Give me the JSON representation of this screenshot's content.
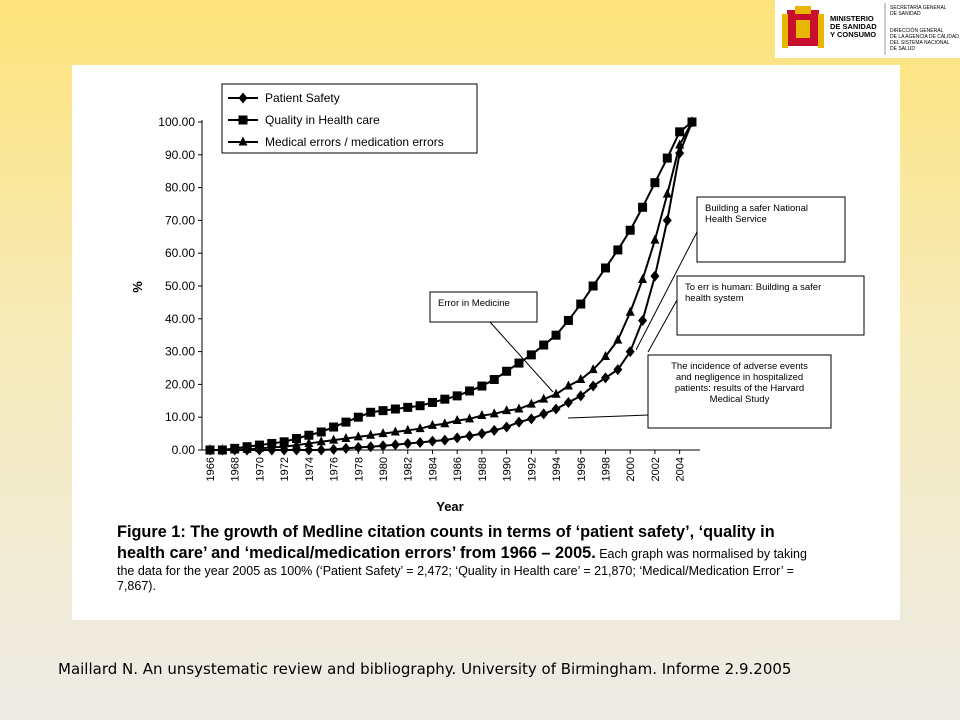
{
  "logo": {
    "ministry": [
      "MINISTERIO",
      "DE SANIDAD",
      "Y CONSUMO"
    ],
    "secretariat": [
      "SECRETARÍA GENERAL",
      "DE SANIDAD"
    ],
    "direction": [
      "DIRECCIÓN GENERAL",
      "DE LA AGENCIA DE CALIDAD",
      "DEL SISTEMA NACIONAL",
      "DE SALUD"
    ]
  },
  "chart_data": {
    "type": "line",
    "xlabel": "Year",
    "ylabel": "%",
    "x": [
      1966,
      1967,
      1968,
      1969,
      1970,
      1971,
      1972,
      1973,
      1974,
      1975,
      1976,
      1977,
      1978,
      1979,
      1980,
      1981,
      1982,
      1983,
      1984,
      1985,
      1986,
      1987,
      1988,
      1989,
      1990,
      1991,
      1992,
      1993,
      1994,
      1995,
      1996,
      1997,
      1998,
      1999,
      2000,
      2001,
      2002,
      2003,
      2004,
      2005
    ],
    "series": [
      {
        "name": "Patient Safety",
        "color": "#000000",
        "marker": "diamond",
        "values": [
          0,
          0,
          0,
          0,
          0,
          0,
          0,
          0,
          0,
          0,
          0.2,
          0.5,
          0.8,
          1,
          1.3,
          1.6,
          2,
          2.3,
          2.7,
          3,
          3.7,
          4.3,
          5,
          6,
          7,
          8.5,
          9.5,
          11,
          12.5,
          14.5,
          16.5,
          19.5,
          22,
          24.5,
          30,
          39.5,
          53,
          70,
          90.5,
          100
        ]
      },
      {
        "name": "Quality in Health care",
        "color": "#000000",
        "marker": "square",
        "values": [
          0,
          0,
          0.5,
          1,
          1.5,
          2,
          2.5,
          3.5,
          4.5,
          5.5,
          7,
          8.5,
          10,
          11.5,
          12,
          12.5,
          13,
          13.5,
          14.5,
          15.5,
          16.5,
          18,
          19.5,
          21.5,
          24,
          26.5,
          29,
          32,
          35,
          39.5,
          44.5,
          50,
          55.5,
          61,
          67,
          74,
          81.5,
          89,
          97,
          100
        ]
      },
      {
        "name": "Medical errors / medication errors",
        "color": "#000000",
        "marker": "triangle",
        "values": [
          0,
          0,
          0,
          0.2,
          0.5,
          0.8,
          1,
          1.5,
          2,
          2.5,
          3,
          3.5,
          4,
          4.5,
          5,
          5.5,
          6,
          6.5,
          7.5,
          8,
          9,
          9.5,
          10.5,
          11,
          12,
          12.5,
          14,
          15.5,
          17,
          19.5,
          21.5,
          24.5,
          28.5,
          33.5,
          42,
          52,
          64,
          78,
          93,
          100
        ]
      }
    ],
    "xlim": [
      1966,
      2005
    ],
    "xticks": [
      1966,
      1968,
      1970,
      1972,
      1974,
      1976,
      1978,
      1980,
      1982,
      1984,
      1986,
      1988,
      1990,
      1992,
      1994,
      1996,
      1998,
      2000,
      2002,
      2004
    ],
    "ylim": [
      0,
      100
    ],
    "yticks": [
      {
        "value": 0,
        "label": "0.00"
      },
      {
        "value": 10,
        "label": "10.00"
      },
      {
        "value": 20,
        "label": "20.00"
      },
      {
        "value": 30,
        "label": "30.00"
      },
      {
        "value": 40,
        "label": "40.00"
      },
      {
        "value": 50,
        "label": "50.00"
      },
      {
        "value": 60,
        "label": "60.00"
      },
      {
        "value": 70,
        "label": "70.00"
      },
      {
        "value": 80,
        "label": "80.00"
      },
      {
        "value": 90,
        "label": "90.00"
      },
      {
        "value": 100,
        "label": "100.00"
      }
    ],
    "legend": "upper left",
    "annotations": [
      {
        "lines": [
          "Error in Medicine"
        ]
      },
      {
        "lines": [
          "Building a safer National",
          "Health Service"
        ]
      },
      {
        "lines": [
          "To err is human: Building a safer",
          "health system"
        ]
      },
      {
        "lines": [
          "The incidence of adverse events",
          "and negligence in hospitalized",
          "patients: results of the Harvard",
          "Medical Study"
        ]
      }
    ]
  },
  "caption": {
    "bold": "Figure 1: The growth of Medline citation counts in terms of ‘patient safety’, ‘quality in health care’ and ‘medical/medication errors’ from 1966 – 2005.",
    "text": " Each graph was normalised by taking the data for the year 2005 as 100% (‘Patient Safety’ = 2,472; ‘Quality in Health care’ = 21,870; ‘Medical/Medication Error’ = 7,867)."
  },
  "footer": "Maillard N. An unsystematic review and bibliography. University of Birmingham. Informe 2.9.2005"
}
